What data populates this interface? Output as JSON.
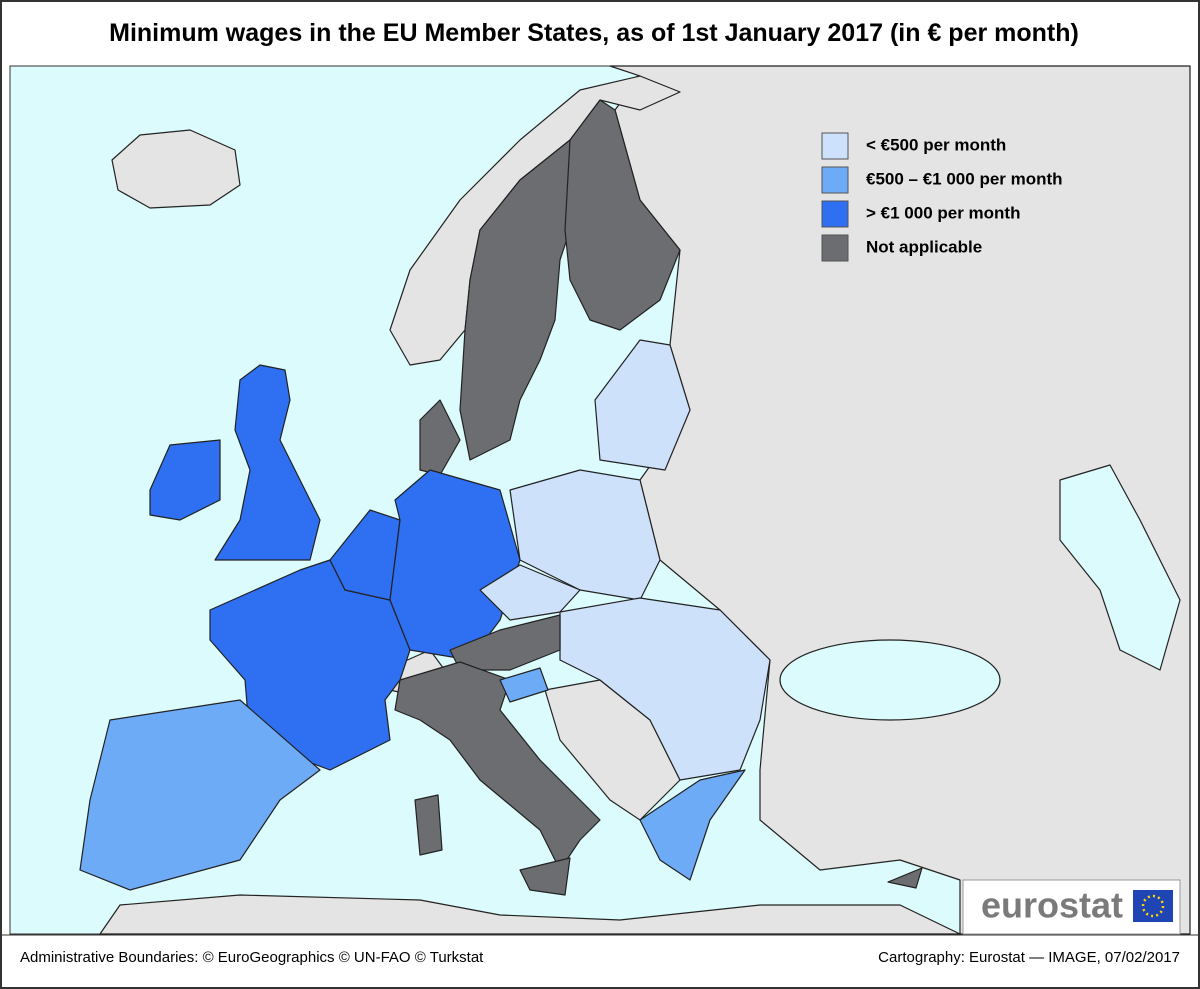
{
  "title": "Minimum wages in the EU Member States, as of 1st January 2017 (in € per month)",
  "legend": [
    {
      "label": "< €500 per month",
      "color": "#cde1fb"
    },
    {
      "label": "€500 – €1 000 per month",
      "color": "#6eabf6"
    },
    {
      "label": "> €1 000 per month",
      "color": "#2f6ff1"
    },
    {
      "label": "Not applicable",
      "color": "#6c6d71"
    }
  ],
  "logo": "eurostat",
  "footer": {
    "left": "Administrative Boundaries: © EuroGeographics © UN-FAO © Turkstat",
    "right": "Cartography: Eurostat — IMAGE, 07/02/2017"
  }
}
